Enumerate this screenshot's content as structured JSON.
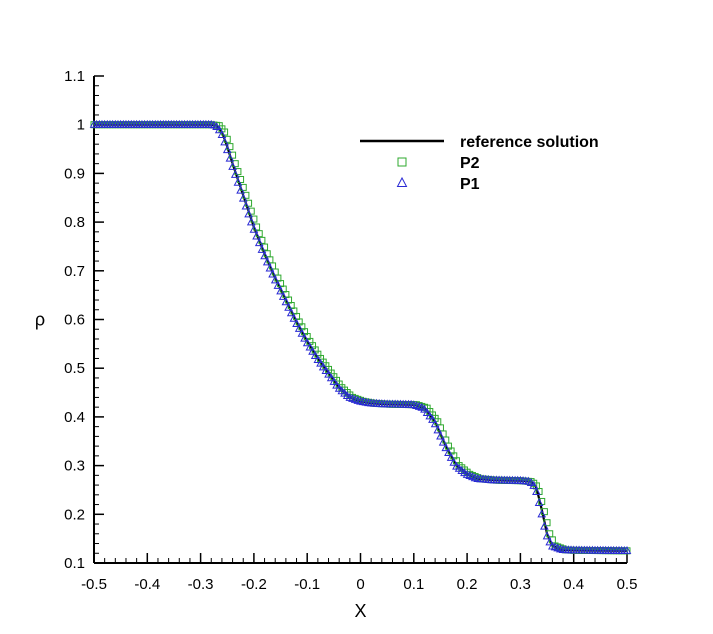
{
  "chart_data": {
    "type": "line",
    "title": "",
    "xlabel": "X",
    "ylabel": "ρ",
    "xlim": [
      -0.5,
      0.5
    ],
    "ylim": [
      0.1,
      1.1
    ],
    "xticks": [
      -0.5,
      -0.4,
      -0.3,
      -0.2,
      -0.1,
      0,
      0.1,
      0.2,
      0.3,
      0.4,
      0.5
    ],
    "xtick_labels": [
      "-0.5",
      "-0.4",
      "-0.3",
      "-0.2",
      "-0.1",
      "0",
      "0.1",
      "0.2",
      "0.3",
      "0.4",
      "0.5"
    ],
    "yticks": [
      0.1,
      0.2,
      0.3,
      0.4,
      0.5,
      0.6,
      0.7,
      0.8,
      0.9,
      1,
      1.1
    ],
    "ytick_labels": [
      "0.1",
      "0.2",
      "0.3",
      "0.4",
      "0.5",
      "0.6",
      "0.7",
      "0.8",
      "0.9",
      "1",
      "1.1"
    ],
    "grid": false,
    "legend_position": "top-right",
    "series": [
      {
        "name": "reference solution",
        "style": "line",
        "color": "#000000",
        "points": [
          [
            -0.5,
            1.0
          ],
          [
            -0.28,
            1.0
          ],
          [
            -0.27,
            0.998
          ],
          [
            -0.26,
            0.985
          ],
          [
            -0.25,
            0.955
          ],
          [
            -0.24,
            0.92
          ],
          [
            -0.22,
            0.855
          ],
          [
            -0.2,
            0.79
          ],
          [
            -0.18,
            0.735
          ],
          [
            -0.16,
            0.685
          ],
          [
            -0.14,
            0.64
          ],
          [
            -0.12,
            0.595
          ],
          [
            -0.1,
            0.555
          ],
          [
            -0.08,
            0.52
          ],
          [
            -0.06,
            0.49
          ],
          [
            -0.04,
            0.46
          ],
          [
            -0.02,
            0.44
          ],
          [
            0.0,
            0.432
          ],
          [
            0.02,
            0.428
          ],
          [
            0.05,
            0.426
          ],
          [
            0.1,
            0.425
          ],
          [
            0.12,
            0.418
          ],
          [
            0.14,
            0.39
          ],
          [
            0.16,
            0.34
          ],
          [
            0.18,
            0.3
          ],
          [
            0.2,
            0.282
          ],
          [
            0.22,
            0.273
          ],
          [
            0.25,
            0.27
          ],
          [
            0.3,
            0.269
          ],
          [
            0.32,
            0.267
          ],
          [
            0.33,
            0.255
          ],
          [
            0.34,
            0.21
          ],
          [
            0.35,
            0.16
          ],
          [
            0.36,
            0.135
          ],
          [
            0.38,
            0.127
          ],
          [
            0.4,
            0.126
          ],
          [
            0.5,
            0.125
          ]
        ]
      },
      {
        "name": "P2",
        "style": "marker",
        "marker": "square",
        "color": "#2ea82e",
        "points": [
          [
            -0.5,
            1.0
          ],
          [
            -0.28,
            1.0
          ],
          [
            -0.265,
            0.998
          ],
          [
            -0.255,
            0.985
          ],
          [
            -0.245,
            0.955
          ],
          [
            -0.235,
            0.92
          ],
          [
            -0.215,
            0.855
          ],
          [
            -0.195,
            0.79
          ],
          [
            -0.175,
            0.735
          ],
          [
            -0.155,
            0.685
          ],
          [
            -0.135,
            0.64
          ],
          [
            -0.115,
            0.595
          ],
          [
            -0.095,
            0.555
          ],
          [
            -0.075,
            0.52
          ],
          [
            -0.055,
            0.49
          ],
          [
            -0.035,
            0.46
          ],
          [
            -0.015,
            0.44
          ],
          [
            0.005,
            0.432
          ],
          [
            0.025,
            0.428
          ],
          [
            0.055,
            0.426
          ],
          [
            0.105,
            0.425
          ],
          [
            0.125,
            0.418
          ],
          [
            0.145,
            0.39
          ],
          [
            0.165,
            0.34
          ],
          [
            0.185,
            0.3
          ],
          [
            0.205,
            0.282
          ],
          [
            0.225,
            0.273
          ],
          [
            0.255,
            0.27
          ],
          [
            0.3,
            0.269
          ],
          [
            0.322,
            0.267
          ],
          [
            0.333,
            0.255
          ],
          [
            0.344,
            0.21
          ],
          [
            0.355,
            0.16
          ],
          [
            0.365,
            0.135
          ],
          [
            0.385,
            0.127
          ],
          [
            0.4,
            0.126
          ],
          [
            0.5,
            0.125
          ]
        ]
      },
      {
        "name": "P1",
        "style": "marker",
        "marker": "triangle",
        "color": "#2a2ad4",
        "points": [
          [
            -0.5,
            1.0
          ],
          [
            -0.28,
            1.0
          ],
          [
            -0.272,
            0.998
          ],
          [
            -0.262,
            0.985
          ],
          [
            -0.252,
            0.955
          ],
          [
            -0.242,
            0.92
          ],
          [
            -0.222,
            0.855
          ],
          [
            -0.202,
            0.79
          ],
          [
            -0.182,
            0.735
          ],
          [
            -0.162,
            0.685
          ],
          [
            -0.142,
            0.64
          ],
          [
            -0.122,
            0.595
          ],
          [
            -0.102,
            0.555
          ],
          [
            -0.082,
            0.52
          ],
          [
            -0.062,
            0.49
          ],
          [
            -0.042,
            0.46
          ],
          [
            -0.022,
            0.44
          ],
          [
            -0.002,
            0.432
          ],
          [
            0.018,
            0.428
          ],
          [
            0.048,
            0.426
          ],
          [
            0.098,
            0.425
          ],
          [
            0.118,
            0.418
          ],
          [
            0.138,
            0.39
          ],
          [
            0.158,
            0.34
          ],
          [
            0.178,
            0.3
          ],
          [
            0.198,
            0.282
          ],
          [
            0.218,
            0.273
          ],
          [
            0.248,
            0.27
          ],
          [
            0.3,
            0.269
          ],
          [
            0.318,
            0.267
          ],
          [
            0.328,
            0.255
          ],
          [
            0.338,
            0.21
          ],
          [
            0.348,
            0.16
          ],
          [
            0.358,
            0.135
          ],
          [
            0.378,
            0.127
          ],
          [
            0.4,
            0.126
          ],
          [
            0.5,
            0.125
          ]
        ]
      }
    ]
  }
}
